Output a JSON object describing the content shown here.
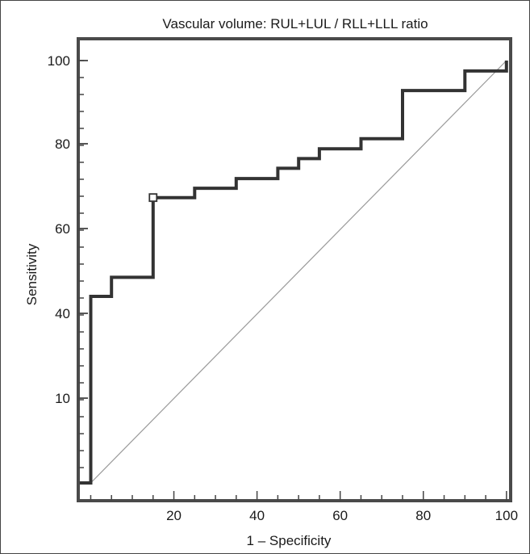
{
  "chart_data": {
    "type": "line",
    "title": "Vascular volume: RUL+LUL / RLL+LLL ratio",
    "xlabel": "1 – Specificity",
    "ylabel": "Sensitivity",
    "xlim": [
      -3,
      101
    ],
    "x_ticks": [
      {
        "value": 20,
        "label": "20"
      },
      {
        "value": 40,
        "label": "40"
      },
      {
        "value": 60,
        "label": "60"
      },
      {
        "value": 80,
        "label": "80"
      },
      {
        "value": 100,
        "label": "100"
      }
    ],
    "y_ticks": [
      {
        "label": "10"
      },
      {
        "label": "40"
      },
      {
        "label": "60"
      },
      {
        "label": "80"
      },
      {
        "label": "100"
      }
    ],
    "series": [
      {
        "x": [
          0,
          0,
          5,
          5,
          15,
          15,
          25,
          25,
          35,
          35,
          45,
          45,
          50,
          50,
          55,
          55,
          65,
          65,
          75,
          75,
          90,
          90,
          100,
          100
        ],
        "y": [
          0,
          44,
          44,
          48.5,
          48.5,
          67.3,
          67.3,
          69.5,
          69.5,
          71.8,
          71.8,
          74.2,
          74.2,
          76.5,
          76.5,
          78.8,
          78.8,
          81.2,
          81.2,
          92.8,
          92.8,
          97.5,
          97.5,
          100
        ],
        "color": "#333333"
      }
    ],
    "reference_line": {
      "from": [
        0,
        0
      ],
      "to": [
        100,
        100
      ],
      "color": "#9a9a9a"
    },
    "optimal_point": {
      "x": 15,
      "y": 67.3
    }
  }
}
